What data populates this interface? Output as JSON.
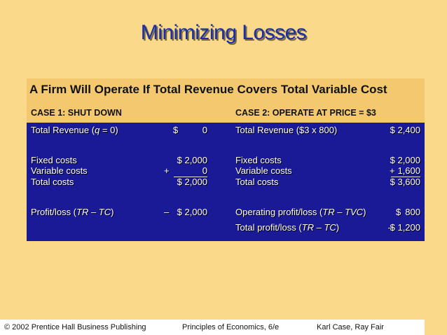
{
  "slide": {
    "title": "Minimizing Losses"
  },
  "table": {
    "heading": "A Firm Will Operate If Total Revenue Covers Total Variable Cost",
    "case1": {
      "label": "CASE 1:  SHUT DOWN",
      "total_revenue_label": "Total Revenue (",
      "total_revenue_var": "q",
      "total_revenue_rest": " = 0)",
      "total_revenue_dollar": "$",
      "total_revenue_value": "0",
      "fixed_costs_label": "Fixed costs",
      "fixed_costs_value": "$ 2,000",
      "variable_costs_label": "Variable costs",
      "variable_costs_sign": "+",
      "variable_costs_value": "0",
      "total_costs_label": "Total costs",
      "total_costs_value": "$ 2,000",
      "profit_label_pre": "Profit/loss (",
      "profit_label_formula": "TR – TC",
      "profit_label_post": ")",
      "profit_sign": "–",
      "profit_value": "$ 2,000"
    },
    "case2": {
      "label": "CASE 2:  OPERATE AT PRICE = $3",
      "total_revenue_label": "Total Revenue ($3 x 800)",
      "total_revenue_value": "$ 2,400",
      "fixed_costs_label": "Fixed costs",
      "fixed_costs_value": "$ 2,000",
      "variable_costs_label": "Variable costs",
      "variable_costs_sign": "+",
      "variable_costs_value": "1,600",
      "total_costs_label": "Total costs",
      "total_costs_value": "$ 3,600",
      "operating_profit_label_pre": "Operating profit/loss (",
      "operating_profit_label_formula": "TR – TVC",
      "operating_profit_label_post": ")",
      "operating_profit_dollar": "$",
      "operating_profit_value": "800",
      "total_profit_label_pre": "Total profit/loss (",
      "total_profit_label_formula": "TR – TC",
      "total_profit_label_post": ")",
      "total_profit_sign": "–",
      "total_profit_value": "$ 1,200"
    }
  },
  "footer": {
    "copyright": "© 2002 Prentice Hall Business Publishing",
    "book": "Principles of Economics, 6/e",
    "authors": "Karl Case, Ray Fair"
  }
}
